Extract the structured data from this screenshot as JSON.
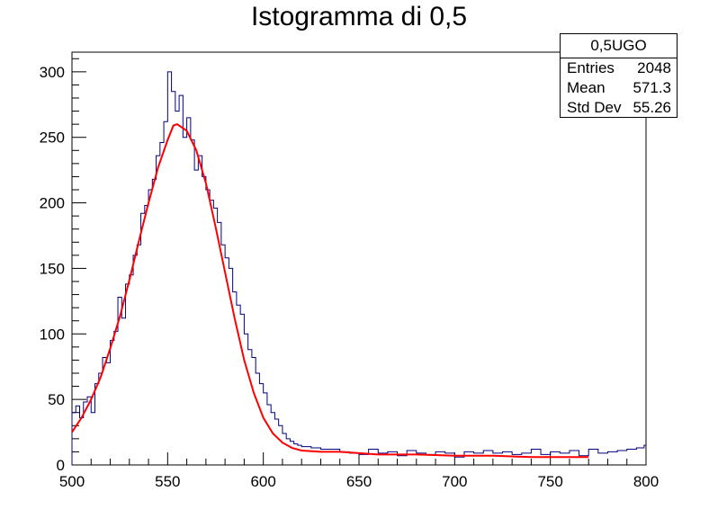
{
  "chart_data": {
    "type": "histogram",
    "title": "Istogramma di 0,5",
    "xlabel": "",
    "ylabel": "",
    "xlim": [
      500,
      800
    ],
    "ylim": [
      0,
      315
    ],
    "x_ticks": [
      500,
      550,
      600,
      650,
      700,
      750,
      800
    ],
    "y_ticks": [
      0,
      50,
      100,
      150,
      200,
      250,
      300
    ],
    "bin_width": 1,
    "histogram_color": "#00007f",
    "fit_color": "#ff0000",
    "histogram": {
      "x": [
        500,
        502,
        504,
        506,
        508,
        510,
        512,
        514,
        516,
        518,
        520,
        522,
        524,
        526,
        528,
        530,
        532,
        534,
        536,
        538,
        540,
        542,
        544,
        546,
        548,
        550,
        552,
        554,
        556,
        558,
        560,
        562,
        564,
        566,
        568,
        570,
        572,
        574,
        576,
        578,
        580,
        582,
        584,
        586,
        588,
        590,
        592,
        594,
        596,
        598,
        600,
        602,
        604,
        606,
        608,
        610,
        612,
        614,
        616,
        618,
        620,
        625,
        630,
        635,
        640,
        645,
        650,
        655,
        660,
        665,
        670,
        675,
        680,
        685,
        690,
        695,
        700,
        705,
        710,
        715,
        720,
        725,
        730,
        735,
        740,
        745,
        750,
        755,
        760,
        765,
        770,
        775,
        780,
        785,
        790,
        795,
        799
      ],
      "y": [
        40,
        45,
        36,
        48,
        52,
        40,
        62,
        70,
        82,
        78,
        95,
        102,
        128,
        112,
        138,
        145,
        160,
        168,
        192,
        198,
        210,
        218,
        236,
        246,
        262,
        300,
        285,
        270,
        282,
        250,
        265,
        248,
        225,
        236,
        220,
        210,
        202,
        196,
        185,
        168,
        158,
        150,
        132,
        122,
        115,
        100,
        88,
        82,
        70,
        62,
        55,
        46,
        40,
        35,
        30,
        24,
        20,
        18,
        16,
        15,
        14,
        13,
        12,
        12,
        10,
        9,
        8,
        12,
        9,
        10,
        7,
        11,
        9,
        8,
        10,
        9,
        6,
        10,
        9,
        11,
        9,
        10,
        8,
        9,
        12,
        8,
        10,
        9,
        11,
        7,
        12,
        9,
        10,
        11,
        12,
        13,
        15
      ]
    },
    "fit": {
      "x": [
        500,
        505,
        510,
        515,
        520,
        525,
        530,
        535,
        540,
        545,
        550,
        553,
        555,
        560,
        565,
        570,
        575,
        580,
        585,
        590,
        595,
        600,
        605,
        610,
        615,
        620,
        630,
        640,
        650,
        660,
        680,
        700,
        720,
        740,
        760,
        770
      ],
      "y": [
        25,
        36,
        50,
        67,
        89,
        113,
        141,
        171,
        200,
        227,
        248,
        259,
        260,
        255,
        240,
        215,
        182,
        147,
        112,
        80,
        55,
        36,
        24,
        17,
        13,
        11,
        10,
        10,
        9,
        8,
        8,
        7,
        7,
        6,
        6,
        6
      ]
    },
    "stats": {
      "name": "0,5UGO",
      "entries_label": "Entries",
      "entries": "2048",
      "mean_label": "Mean",
      "mean": "571.3",
      "stddev_label": "Std Dev",
      "stddev": "55.26"
    }
  }
}
